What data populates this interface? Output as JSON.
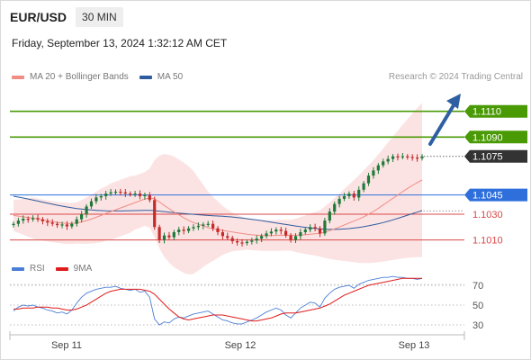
{
  "header": {
    "symbol": "EUR/USD",
    "timeframe": "30 MIN"
  },
  "datetime": "Friday, September 13, 2024 1:32:12 AM CET",
  "legend": [
    {
      "label": "MA 20 + Bollinger Bands",
      "color": "#f08c84"
    },
    {
      "label": "MA 50",
      "color": "#2e5c9e"
    }
  ],
  "credit": "Research © 2024 Trading Central",
  "rsi_legend": [
    {
      "label": "RSI",
      "color": "#4a7fd6"
    },
    {
      "label": "9MA",
      "color": "#e01b1b"
    }
  ],
  "colors": {
    "resistance": "#4a9a05",
    "pivot": "#2f6fdc",
    "support": "#d84848",
    "current": "#333333",
    "candle_up": "#1f7a3a",
    "candle_down": "#c52a2a",
    "arrow": "#2e5fa3",
    "band_fill": "#fbd9d9",
    "ma20": "#f08c84",
    "ma50": "#2e5c9e",
    "rsi": "#4a7fd6",
    "rsi_ma": "#e01b1b"
  },
  "chart_data": [
    {
      "type": "candlestick",
      "title": "EUR/USD 30 MIN",
      "x_ticks": [
        "Sep 11",
        "Sep 12",
        "Sep 13"
      ],
      "ylim": [
        1.1002,
        1.1128
      ],
      "levels": [
        {
          "value": 1.111,
          "label": "1.1110",
          "kind": "resistance"
        },
        {
          "value": 1.109,
          "label": "1.1090",
          "kind": "resistance"
        },
        {
          "value": 1.1075,
          "label": "1.1075",
          "kind": "current"
        },
        {
          "value": 1.1045,
          "label": "1.1045",
          "kind": "pivot"
        },
        {
          "value": 1.103,
          "label": "1.1030",
          "kind": "support"
        },
        {
          "value": 1.101,
          "label": "1.1010",
          "kind": "support"
        }
      ],
      "close": [
        1.10225,
        1.1025,
        1.10265,
        1.1026,
        1.1027,
        1.1026,
        1.10245,
        1.10235,
        1.10225,
        1.10215,
        1.1022,
        1.10205,
        1.10225,
        1.1026,
        1.103,
        1.1036,
        1.104,
        1.1043,
        1.1044,
        1.1046,
        1.1047,
        1.10475,
        1.1047,
        1.1046,
        1.10455,
        1.1046,
        1.1044,
        1.1045,
        1.1041,
        1.102,
        1.101,
        1.10135,
        1.1012,
        1.1016,
        1.1018,
        1.1017,
        1.1019,
        1.102,
        1.1021,
        1.1022,
        1.10225,
        1.1019,
        1.1016,
        1.1013,
        1.10115,
        1.1009,
        1.1008,
        1.10075,
        1.10085,
        1.10095,
        1.1011,
        1.1013,
        1.1015,
        1.10165,
        1.1018,
        1.1017,
        1.10135,
        1.101,
        1.1013,
        1.1016,
        1.1018,
        1.102,
        1.1019,
        1.1015,
        1.1025,
        1.1032,
        1.1038,
        1.1042,
        1.1044,
        1.1046,
        1.1043,
        1.1049,
        1.1054,
        1.106,
        1.1064,
        1.1068,
        1.1071,
        1.1073,
        1.1075,
        1.10745,
        1.1075,
        1.10745,
        1.1074,
        1.10735,
        1.1075
      ],
      "ma20": [
        1.1029,
        1.10285,
        1.1028,
        1.10275,
        1.1027,
        1.10262,
        1.10255,
        1.10248,
        1.10242,
        1.10236,
        1.10232,
        1.10228,
        1.10228,
        1.10232,
        1.1024,
        1.1025,
        1.10262,
        1.10276,
        1.1029,
        1.10306,
        1.1032,
        1.10334,
        1.10348,
        1.10362,
        1.10376,
        1.1039,
        1.10404,
        1.10418,
        1.10425,
        1.1042,
        1.10395,
        1.10368,
        1.10342,
        1.10318,
        1.10295,
        1.10272,
        1.10252,
        1.10235,
        1.10222,
        1.1021,
        1.10196,
        1.10186,
        1.1018,
        1.10174,
        1.10168,
        1.10162,
        1.10156,
        1.1015,
        1.10144,
        1.1014,
        1.10137,
        1.10135,
        1.10134,
        1.10134,
        1.10135,
        1.10136,
        1.10137,
        1.10136,
        1.10136,
        1.10138,
        1.1014,
        1.10144,
        1.10148,
        1.1015,
        1.1016,
        1.10172,
        1.10186,
        1.102,
        1.10216,
        1.10232,
        1.10246,
        1.10262,
        1.1028,
        1.103,
        1.10322,
        1.10346,
        1.10372,
        1.10398,
        1.10424,
        1.1045,
        1.10476,
        1.105,
        1.10524,
        1.10546,
        1.10566
      ],
      "ma50": [
        1.1044,
        1.10433,
        1.10426,
        1.10418,
        1.1041,
        1.10402,
        1.10394,
        1.10386,
        1.10378,
        1.1037,
        1.10363,
        1.10356,
        1.1035,
        1.10344,
        1.1034,
        1.10336,
        1.10333,
        1.1033,
        1.10328,
        1.10326,
        1.10325,
        1.10325,
        1.10325,
        1.10326,
        1.10327,
        1.10328,
        1.10329,
        1.1033,
        1.1033,
        1.10328,
        1.10324,
        1.1032,
        1.10316,
        1.10312,
        1.10308,
        1.10305,
        1.10302,
        1.10299,
        1.10296,
        1.10293,
        1.1029,
        1.10288,
        1.10286,
        1.10284,
        1.10281,
        1.10278,
        1.10274,
        1.1027,
        1.10265,
        1.1026,
        1.10255,
        1.1025,
        1.10244,
        1.10238,
        1.10232,
        1.10226,
        1.1022,
        1.10214,
        1.10208,
        1.10203,
        1.10198,
        1.10193,
        1.10189,
        1.10185,
        1.10183,
        1.10182,
        1.10182,
        1.10183,
        1.10185,
        1.10188,
        1.10192,
        1.10197,
        1.10203,
        1.1021,
        1.10218,
        1.10226,
        1.10235,
        1.10245,
        1.10256,
        1.10268,
        1.1028,
        1.10292,
        1.10304,
        1.10316,
        1.10328
      ],
      "bb_width": [
        0.0012,
        0.0013,
        0.0014,
        0.0015,
        0.0016,
        0.0016,
        0.0016,
        0.0016,
        0.0016,
        0.0016,
        0.0016,
        0.0016,
        0.0016,
        0.0016,
        0.0017,
        0.0018,
        0.0019,
        0.002,
        0.0021,
        0.0021,
        0.0022,
        0.0022,
        0.0022,
        0.0022,
        0.0022,
        0.0021,
        0.0021,
        0.0021,
        0.0023,
        0.003,
        0.0036,
        0.004,
        0.0042,
        0.0043,
        0.0043,
        0.0043,
        0.0042,
        0.004,
        0.0036,
        0.0032,
        0.0028,
        0.0025,
        0.0022,
        0.0019,
        0.0017,
        0.0015,
        0.0014,
        0.0013,
        0.0012,
        0.0012,
        0.0012,
        0.0012,
        0.0012,
        0.0012,
        0.0012,
        0.0012,
        0.0012,
        0.0012,
        0.0013,
        0.0014,
        0.0015,
        0.0016,
        0.0017,
        0.0018,
        0.002,
        0.0022,
        0.0024,
        0.0026,
        0.0028,
        0.003,
        0.0032,
        0.0034,
        0.0036,
        0.0038,
        0.004,
        0.0042,
        0.0044,
        0.0046,
        0.0048,
        0.005,
        0.0052,
        0.0054,
        0.0056,
        0.0058,
        0.006
      ]
    },
    {
      "type": "line",
      "title": "RSI",
      "y_ticks": [
        70,
        50,
        30
      ],
      "ylim": [
        20,
        80
      ],
      "series": [
        {
          "name": "RSI",
          "values": [
            44,
            48,
            50,
            49,
            50,
            48,
            47,
            45,
            44,
            42,
            43,
            41,
            45,
            52,
            58,
            62,
            64,
            66,
            67,
            68,
            68,
            69,
            67,
            66,
            65,
            66,
            63,
            64,
            58,
            36,
            30,
            33,
            32,
            36,
            38,
            37,
            39,
            41,
            42,
            43,
            44,
            41,
            38,
            35,
            34,
            32,
            31,
            31,
            33,
            35,
            37,
            40,
            43,
            45,
            47,
            45,
            40,
            37,
            42,
            47,
            50,
            53,
            52,
            48,
            57,
            62,
            66,
            68,
            69,
            70,
            67,
            71,
            73,
            75,
            76,
            77,
            78,
            78,
            79,
            78,
            78,
            77,
            77,
            76,
            77
          ]
        },
        {
          "name": "9MA",
          "values": [
            46,
            46,
            47,
            47,
            47,
            48,
            48,
            48,
            47,
            47,
            46,
            45,
            45,
            46,
            48,
            50,
            53,
            56,
            59,
            62,
            64,
            65,
            66,
            66,
            66,
            66,
            66,
            65,
            64,
            61,
            56,
            51,
            46,
            42,
            38,
            36,
            35,
            36,
            37,
            38,
            39,
            40,
            40,
            40,
            39,
            38,
            37,
            36,
            35,
            34,
            34,
            35,
            36,
            37,
            39,
            41,
            42,
            42,
            42,
            43,
            44,
            45,
            46,
            47,
            49,
            51,
            54,
            57,
            60,
            62,
            64,
            66,
            68,
            70,
            71,
            72,
            73,
            74,
            75,
            76,
            77,
            77,
            77,
            77,
            77
          ]
        }
      ]
    }
  ]
}
